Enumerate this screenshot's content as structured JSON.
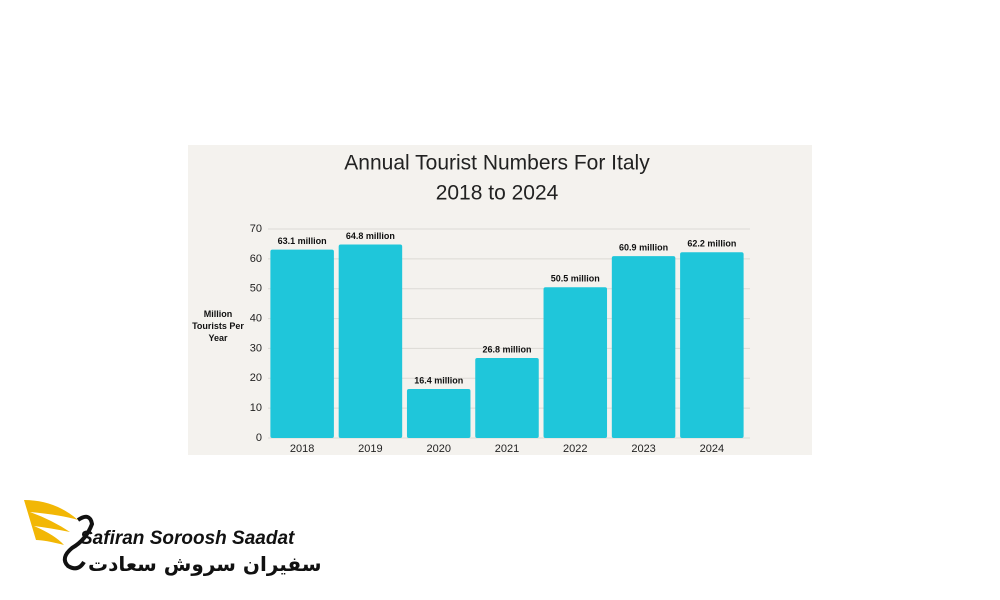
{
  "chart_data": {
    "type": "bar",
    "title": "Annual Tourist Numbers For Italy",
    "subtitle": "2018 to 2024",
    "y_label": "Million Tourists Per Year",
    "categories": [
      "2018",
      "2019",
      "2020",
      "2021",
      "2022",
      "2023",
      "2024"
    ],
    "values": [
      63.1,
      64.8,
      16.4,
      26.8,
      50.5,
      60.9,
      62.2
    ],
    "value_labels": [
      "63.1 million",
      "64.8 million",
      "16.4 million",
      "26.8 million",
      "50.5 million",
      "60.9 million",
      "62.2 million"
    ],
    "color": "#1fc6da",
    "ylim": [
      0,
      70
    ],
    "yticks": [
      0,
      10,
      20,
      30,
      40,
      50,
      60,
      70
    ],
    "grid": true
  },
  "logo": {
    "name": "Safiran Soroosh Saadat",
    "name_fa": "سفیران سروش سعادت"
  }
}
